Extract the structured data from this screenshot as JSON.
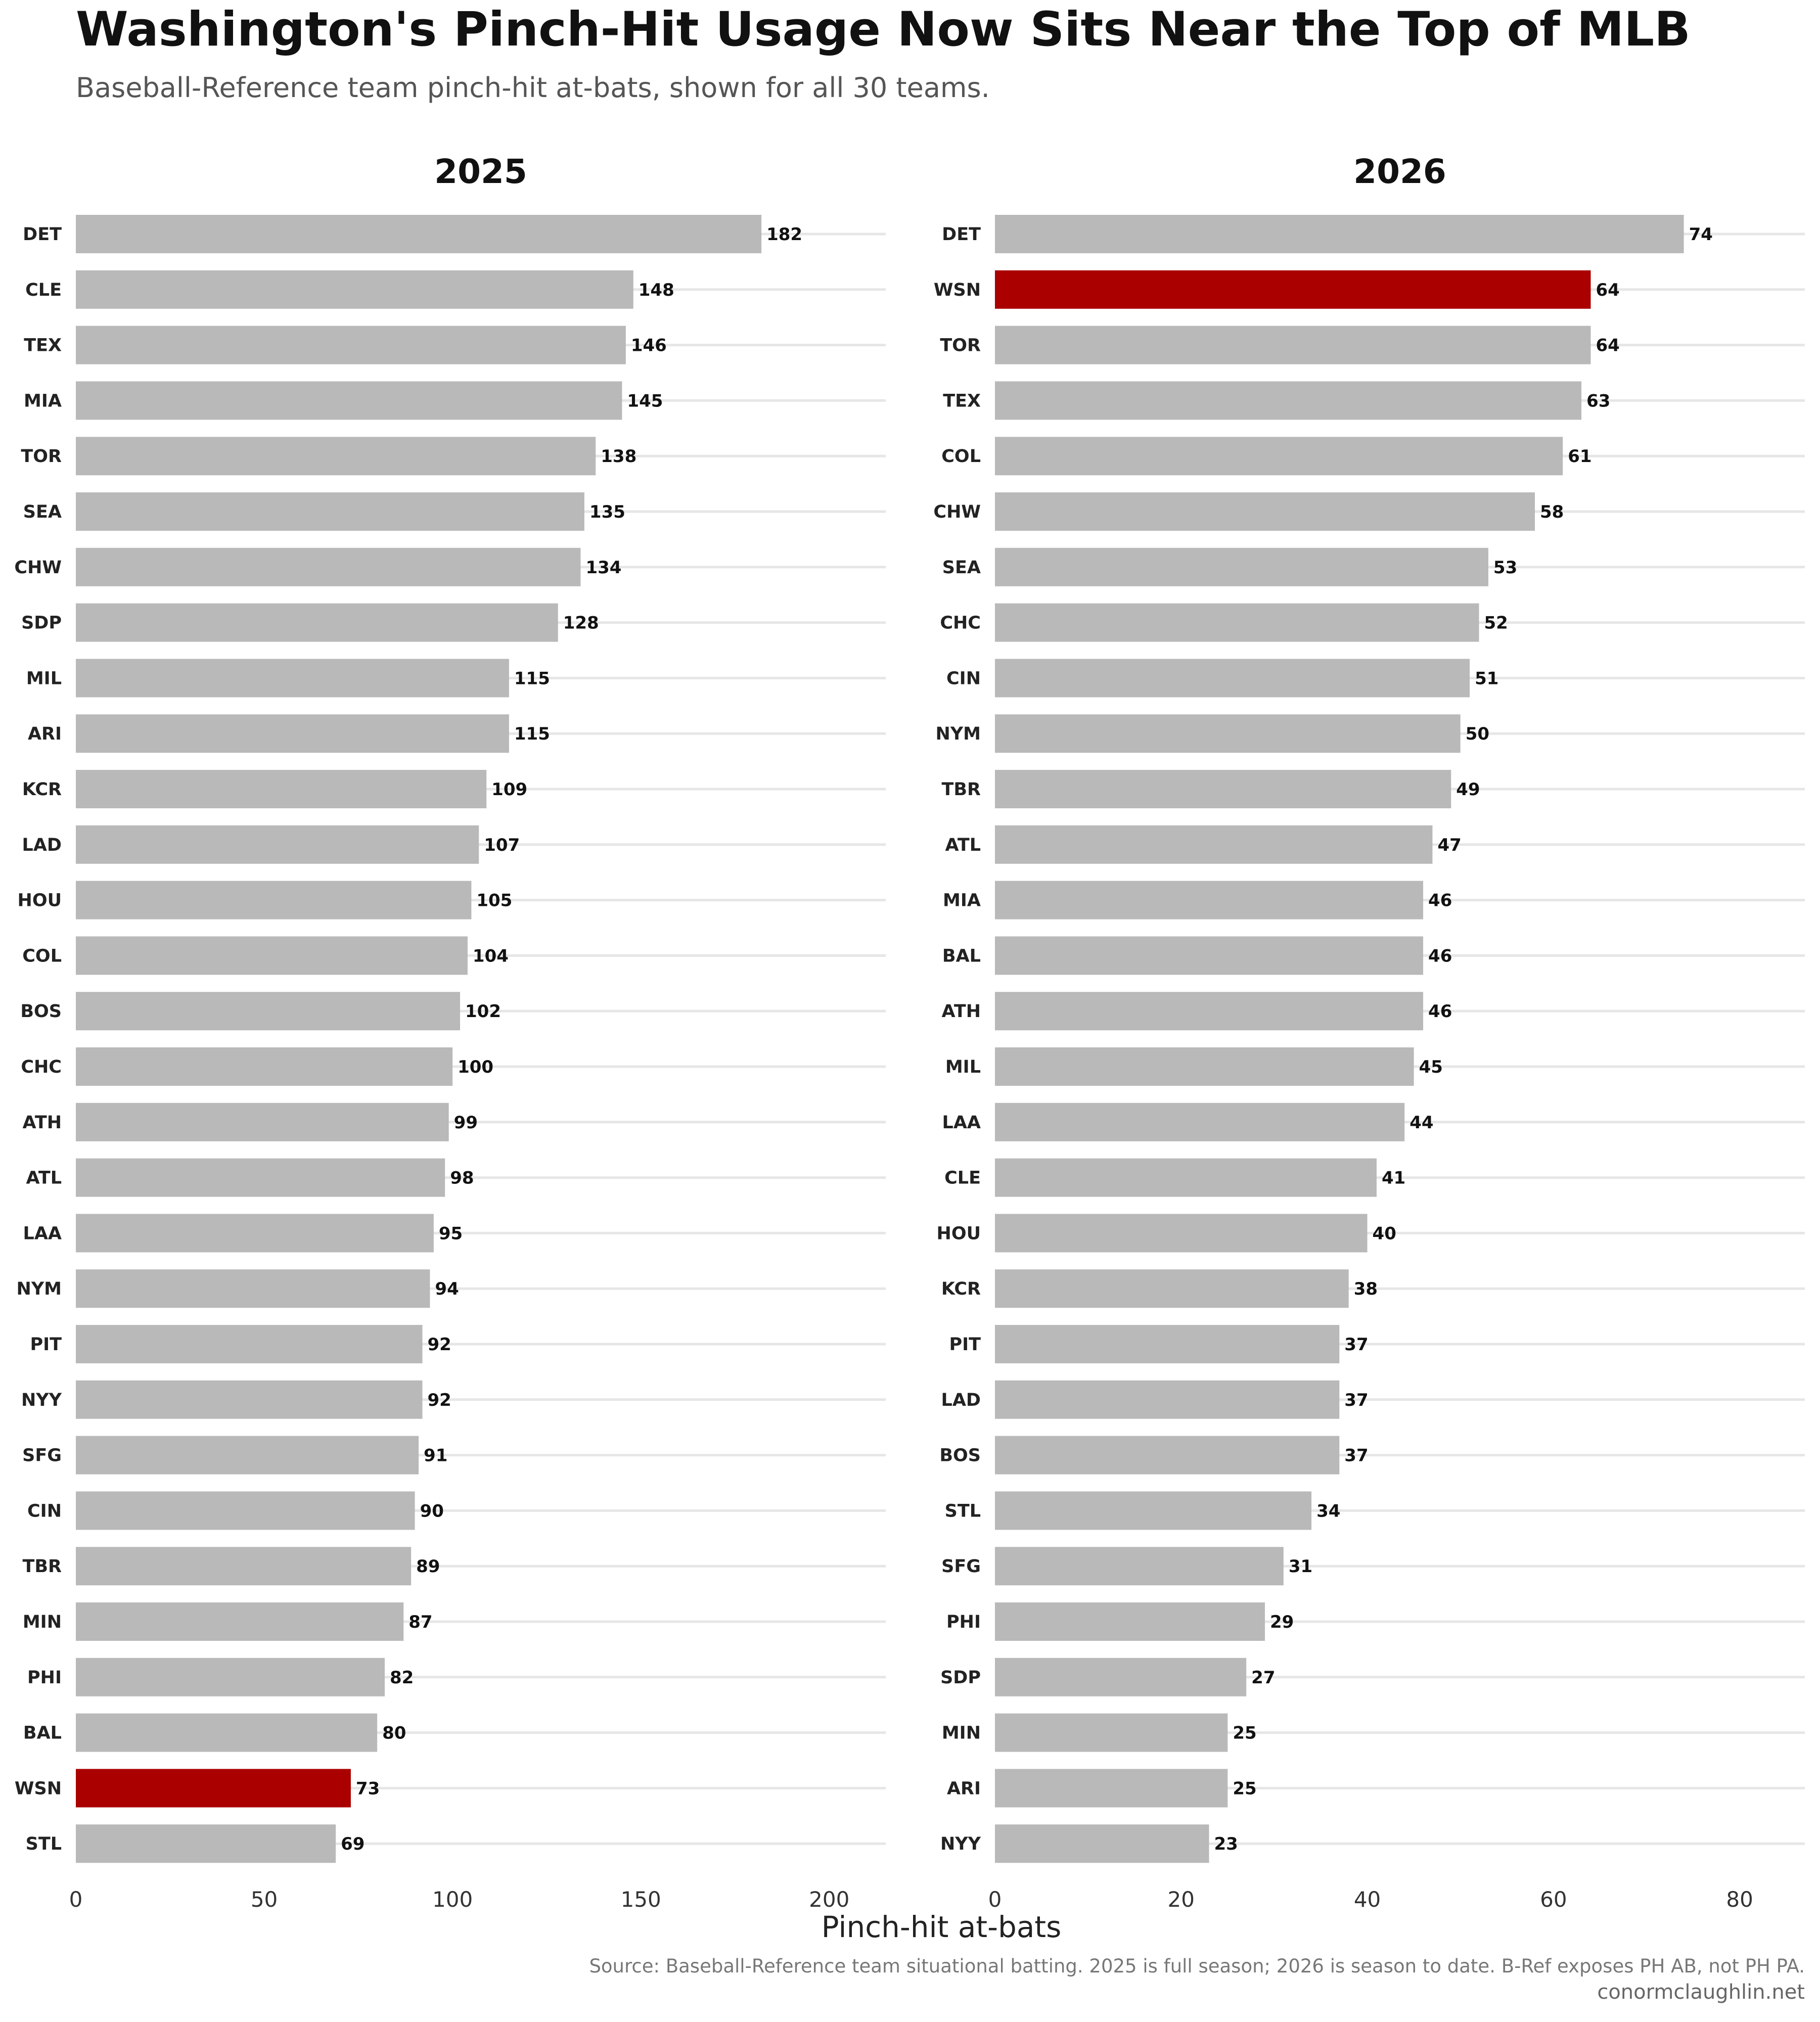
{
  "title": "Washington's Pinch-Hit Usage Now Sits Near the Top of MLB",
  "subtitle": "Baseball-Reference team pinch-hit at-bats, shown for all 30 teams.",
  "source_note": "Source: Baseball-Reference team situational batting. 2025 is full season; 2026 is season to date. B-Ref exposes PH AB, not PH PA.",
  "credit": "conormclaughlin.net",
  "colors": {
    "bar": "#b9b9b9",
    "highlight": "#aa0000",
    "gridline": "#e6e6e6"
  },
  "chart_data": [
    {
      "type": "bar",
      "orientation": "horizontal",
      "title": "2025",
      "xlabel": "Pinch-hit at-bats",
      "xlim": [
        0,
        215
      ],
      "xticks": [
        0,
        50,
        100,
        150,
        200
      ],
      "highlight": "WSN",
      "categories": [
        "DET",
        "CLE",
        "TEX",
        "MIA",
        "TOR",
        "SEA",
        "CHW",
        "SDP",
        "MIL",
        "ARI",
        "KCR",
        "LAD",
        "HOU",
        "COL",
        "BOS",
        "CHC",
        "ATH",
        "ATL",
        "LAA",
        "NYM",
        "PIT",
        "NYY",
        "SFG",
        "CIN",
        "TBR",
        "MIN",
        "PHI",
        "BAL",
        "WSN",
        "STL"
      ],
      "values": [
        182,
        148,
        146,
        145,
        138,
        135,
        134,
        128,
        115,
        115,
        109,
        107,
        105,
        104,
        102,
        100,
        99,
        98,
        95,
        94,
        92,
        92,
        91,
        90,
        89,
        87,
        82,
        80,
        73,
        69
      ]
    },
    {
      "type": "bar",
      "orientation": "horizontal",
      "title": "2026",
      "xlabel": "Pinch-hit at-bats",
      "xlim": [
        0,
        87
      ],
      "xticks": [
        0,
        20,
        40,
        60,
        80
      ],
      "highlight": "WSN",
      "categories": [
        "DET",
        "WSN",
        "TOR",
        "TEX",
        "COL",
        "CHW",
        "SEA",
        "CHC",
        "CIN",
        "NYM",
        "TBR",
        "ATL",
        "MIA",
        "BAL",
        "ATH",
        "MIL",
        "LAA",
        "CLE",
        "HOU",
        "KCR",
        "PIT",
        "LAD",
        "BOS",
        "STL",
        "SFG",
        "PHI",
        "SDP",
        "MIN",
        "ARI",
        "NYY"
      ],
      "values": [
        74,
        64,
        64,
        63,
        61,
        58,
        53,
        52,
        51,
        50,
        49,
        47,
        46,
        46,
        46,
        45,
        44,
        41,
        40,
        38,
        37,
        37,
        37,
        34,
        31,
        29,
        27,
        25,
        25,
        23
      ]
    }
  ]
}
